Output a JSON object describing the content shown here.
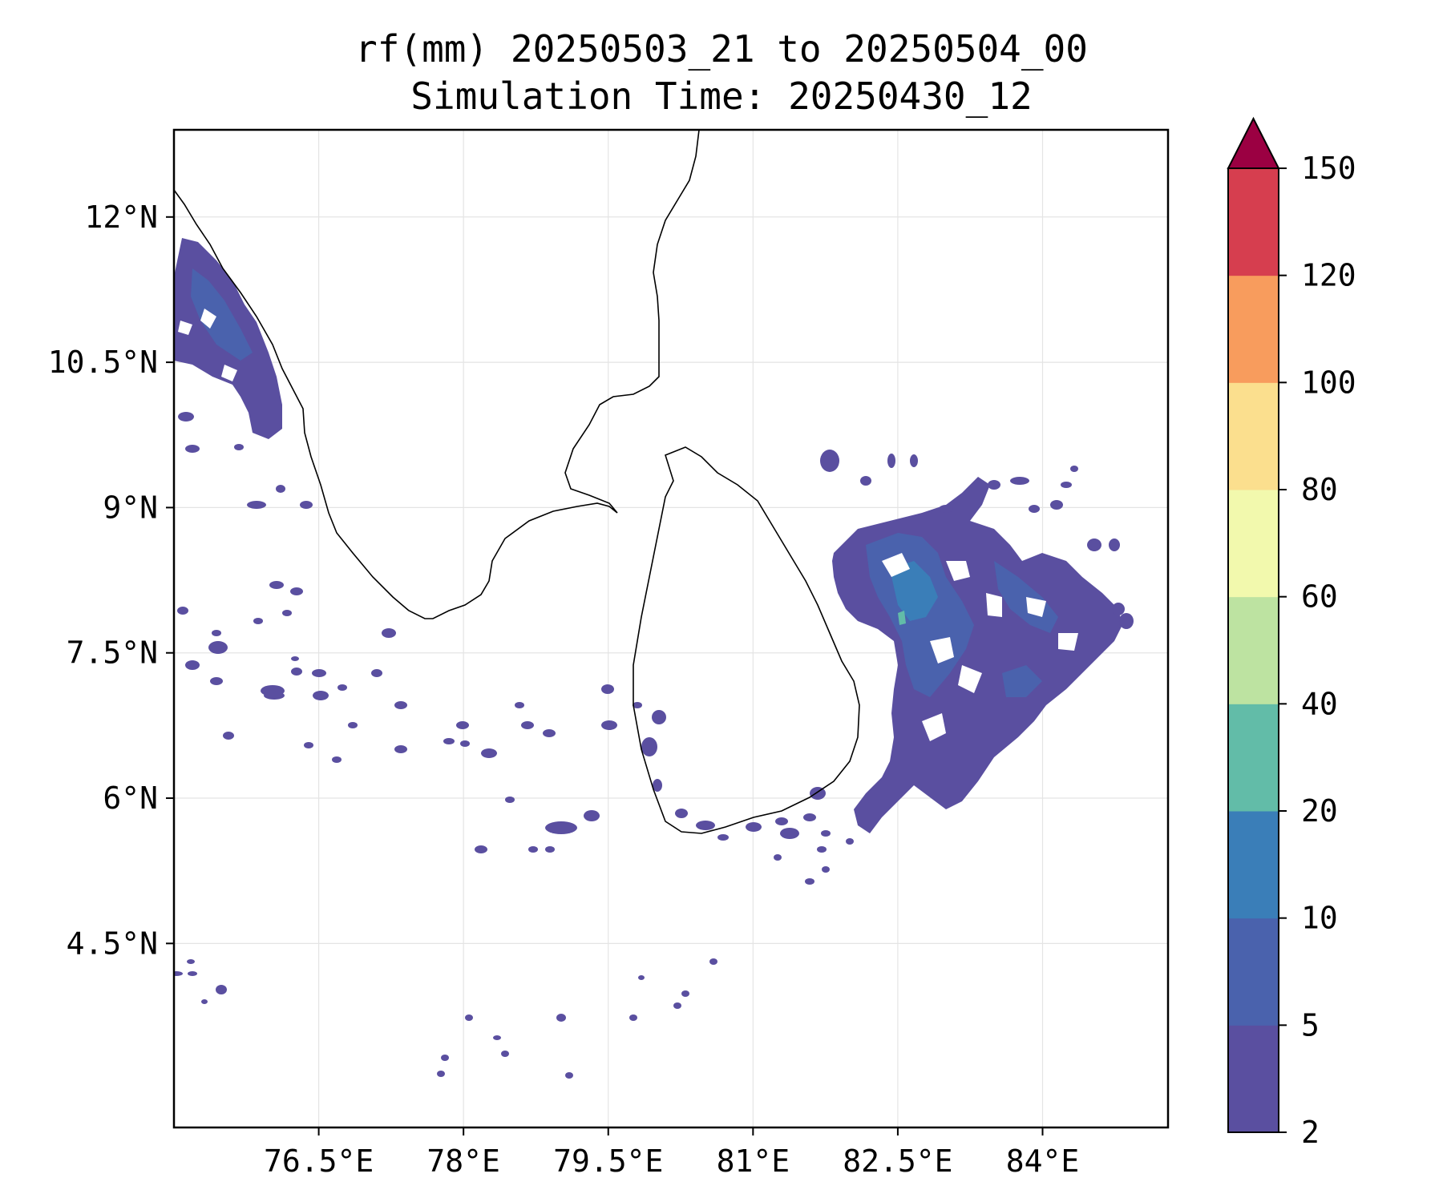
{
  "title": "rf(mm) 20250503_21 to 20250504_00",
  "subtitle": "Simulation Time: 20250430_12",
  "map": {
    "lon_range": [
      75,
      85.3
    ],
    "lat_range": [
      2.6,
      12.9
    ],
    "lon_ticks": [
      76.5,
      78,
      79.5,
      81,
      82.5,
      84
    ],
    "lon_tick_labels": [
      "76.5°E",
      "78°E",
      "79.5°E",
      "81°E",
      "82.5°E",
      "84°E"
    ],
    "lat_ticks": [
      12,
      10.5,
      9,
      7.5,
      6,
      4.5
    ],
    "lat_tick_labels": [
      "12°N",
      "10.5°N",
      "9°N",
      "7.5°N",
      "6°N",
      "4.5°N"
    ],
    "grid": true
  },
  "colorbar": {
    "levels": [
      2,
      5,
      10,
      20,
      40,
      60,
      80,
      100,
      120,
      150
    ],
    "labels": [
      "2",
      "5",
      "10",
      "20",
      "40",
      "60",
      "80",
      "100",
      "120",
      "150"
    ],
    "colors": [
      "#5a4fa0",
      "#4a62ad",
      "#3a7eb8",
      "#62bca8",
      "#bde3a1",
      "#f2f9ad",
      "#fbdf8e",
      "#f89c5d",
      "#d63e4f"
    ],
    "extend_color": "#9b0042",
    "extend": "max"
  },
  "colors": {
    "rain_low": "#5a4fa0",
    "rain_mid": "#4a62ad",
    "rain_high": "#3a7eb8",
    "coastline": "#000000"
  }
}
